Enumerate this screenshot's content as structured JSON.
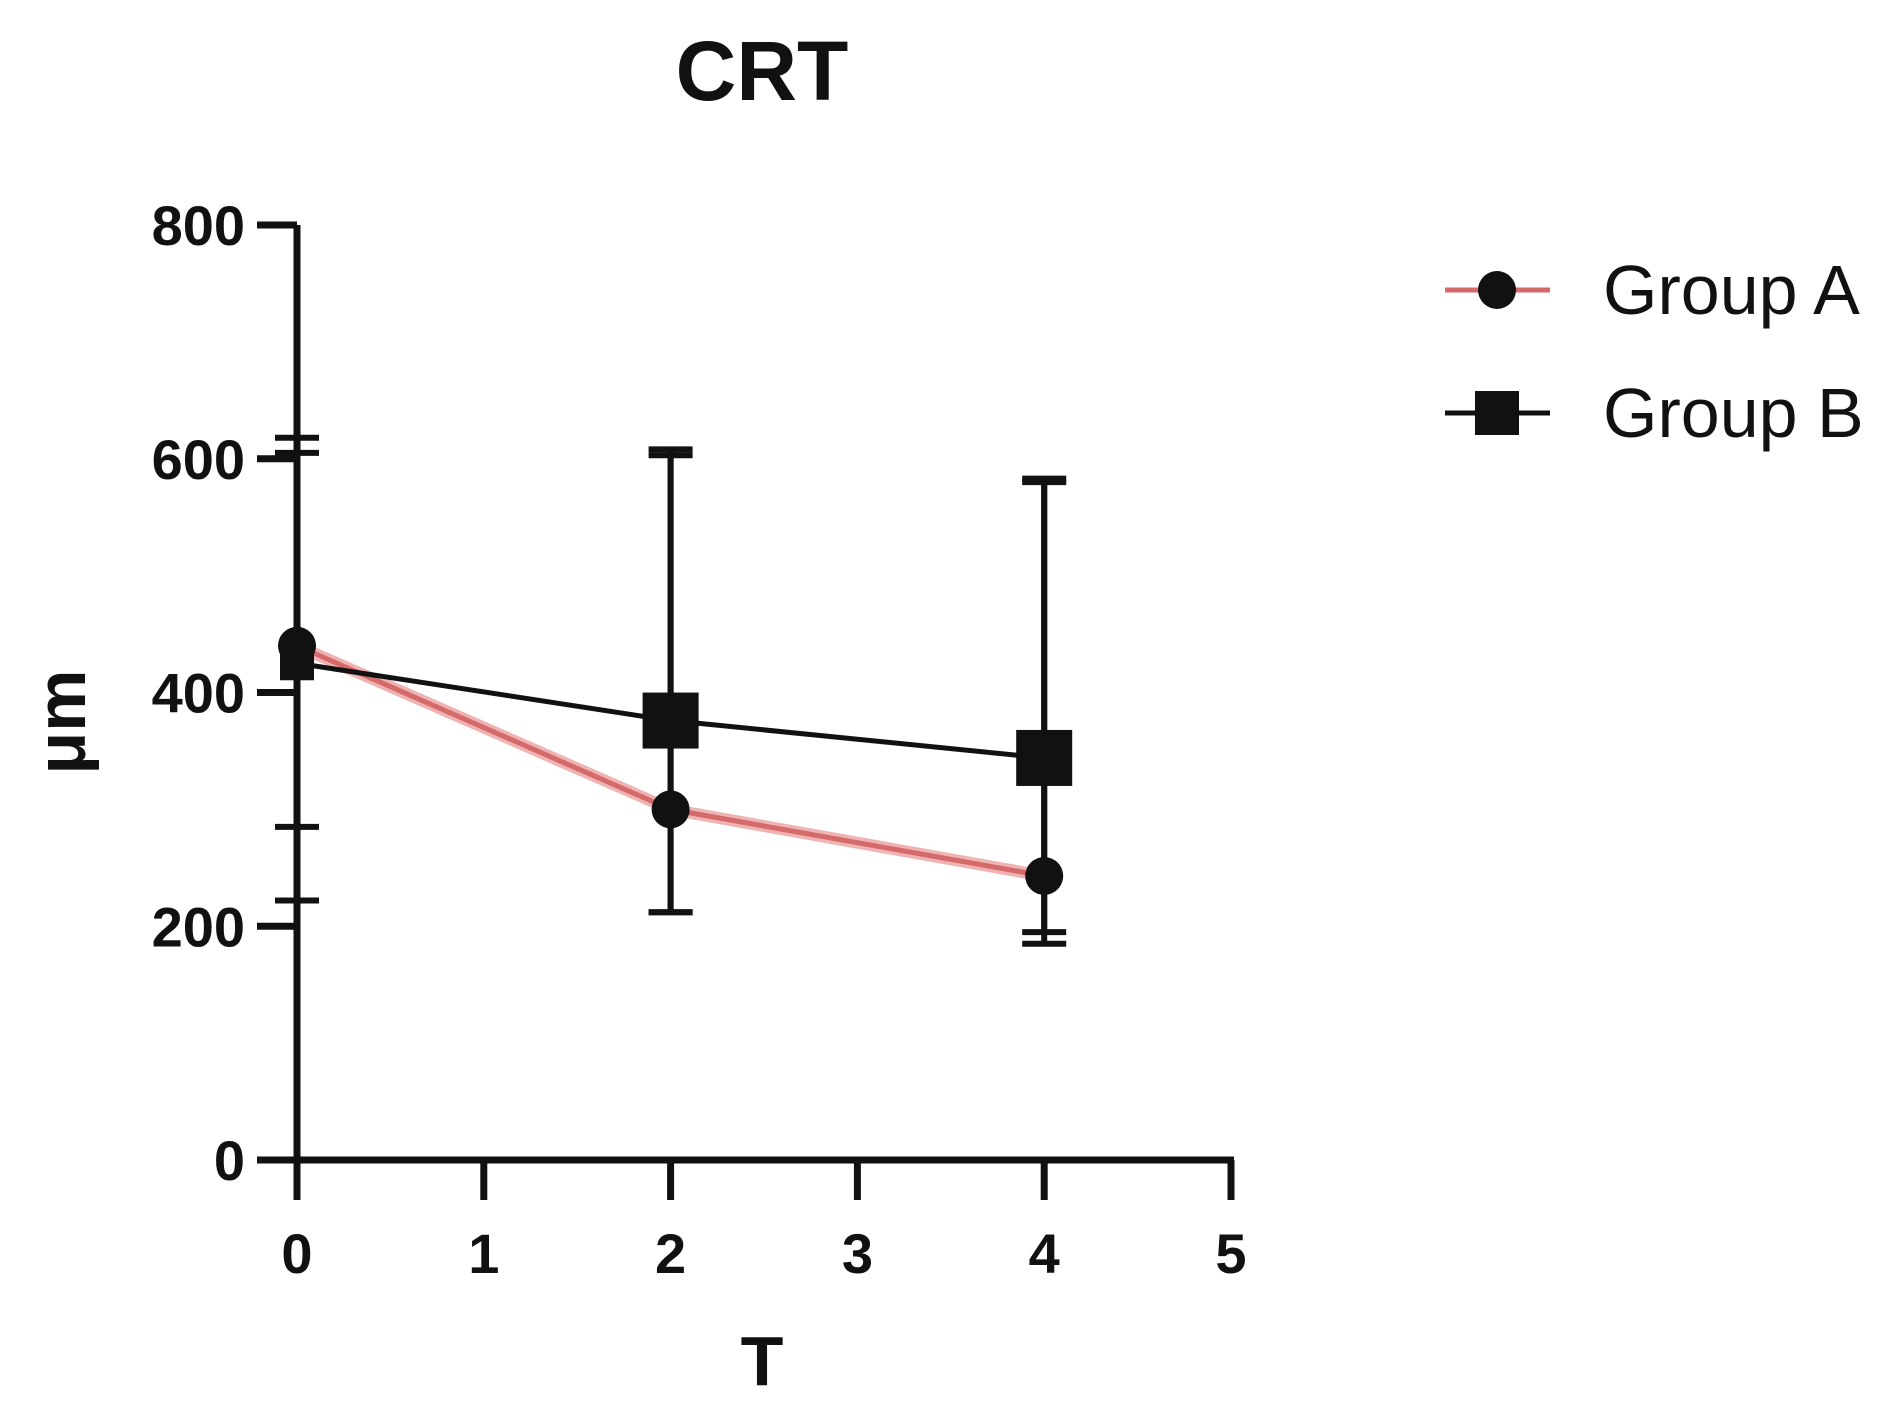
{
  "chart_data": {
    "type": "line",
    "title": "CRT",
    "xlabel": "T",
    "ylabel": "μm",
    "xlim": [
      0,
      5
    ],
    "ylim": [
      0,
      800
    ],
    "xticks": [
      "0",
      "1",
      "2",
      "3",
      "4",
      "5"
    ],
    "yticks": [
      "0",
      "200",
      "400",
      "600",
      "800"
    ],
    "grid": false,
    "legend_position": "top-right",
    "series": [
      {
        "name": "Group A",
        "color": "#d46a6a",
        "marker": "circle",
        "x": [
          0,
          2,
          4
        ],
        "y": [
          440,
          300,
          243
        ],
        "err_upper": [
          605,
          603,
          580
        ],
        "err_lower": [
          222,
          212,
          185
        ]
      },
      {
        "name": "Group B",
        "color": "#111111",
        "marker": "square",
        "x": [
          0,
          2,
          4
        ],
        "y": [
          425,
          376,
          344
        ],
        "err_upper": [
          618,
          608,
          583
        ],
        "err_lower": [
          285,
          212,
          195
        ]
      }
    ]
  }
}
